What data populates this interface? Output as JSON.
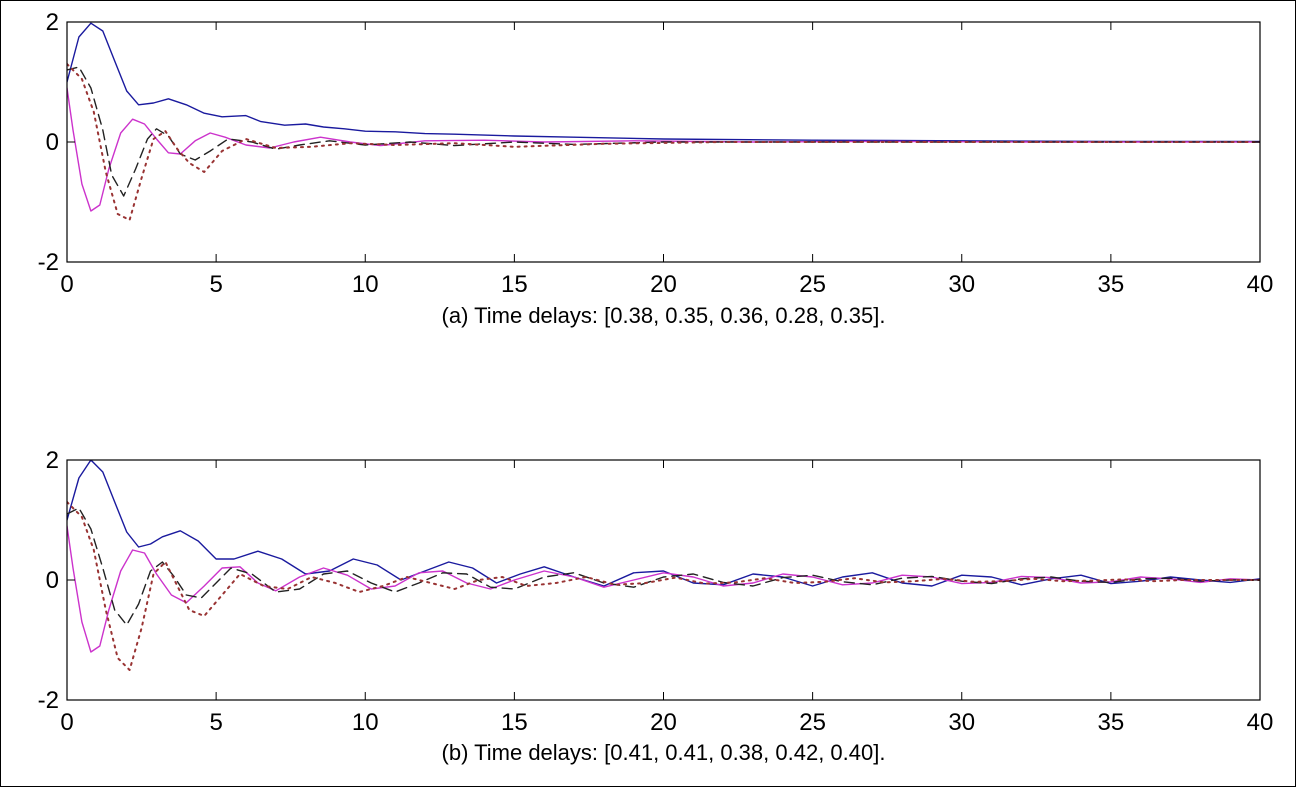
{
  "chart_data": [
    {
      "type": "line",
      "caption": "(a) Time  delays: [0.38, 0.35, 0.36, 0.28, 0.35].",
      "xlim": [
        0,
        40
      ],
      "ylim": [
        -2,
        2
      ],
      "xticks": [
        0,
        5,
        10,
        15,
        20,
        25,
        30,
        35,
        40
      ],
      "yticks": [
        -2,
        0,
        2
      ],
      "grid": false,
      "series": [
        {
          "color": "#1a1a9e",
          "style": "solid",
          "x": [
            0,
            0.4,
            0.8,
            1.2,
            1.6,
            2.0,
            2.4,
            2.9,
            3.4,
            4.0,
            4.6,
            5.2,
            6.0,
            6.5,
            7.3,
            8.0,
            8.6,
            9.3,
            10,
            11,
            12,
            13,
            15,
            17,
            20,
            25,
            30,
            35,
            40
          ],
          "y": [
            1.0,
            1.75,
            1.98,
            1.85,
            1.35,
            0.85,
            0.62,
            0.65,
            0.72,
            0.62,
            0.48,
            0.42,
            0.44,
            0.34,
            0.28,
            0.3,
            0.25,
            0.22,
            0.18,
            0.17,
            0.14,
            0.13,
            0.1,
            0.08,
            0.05,
            0.03,
            0.02,
            0.01,
            0.01
          ]
        },
        {
          "color": "#cc33cc",
          "style": "solid",
          "x": [
            0,
            0.2,
            0.5,
            0.8,
            1.1,
            1.4,
            1.8,
            2.2,
            2.6,
            3.0,
            3.4,
            3.8,
            4.3,
            4.8,
            5.3,
            6.0,
            6.8,
            7.6,
            8.5,
            9.5,
            10.5,
            12,
            14,
            16,
            19,
            23,
            27,
            32,
            40
          ],
          "y": [
            0.9,
            0.2,
            -0.7,
            -1.15,
            -1.05,
            -0.45,
            0.15,
            0.38,
            0.3,
            0.05,
            -0.18,
            -0.2,
            0.02,
            0.15,
            0.08,
            -0.05,
            -0.1,
            0.0,
            0.08,
            0.0,
            -0.06,
            0.02,
            0.03,
            0.0,
            0.02,
            0.0,
            0.01,
            0.0,
            0.0
          ]
        },
        {
          "color": "#222222",
          "style": "dash",
          "x": [
            0,
            0.4,
            0.8,
            1.2,
            1.5,
            1.9,
            2.3,
            2.7,
            3.0,
            3.4,
            3.8,
            4.3,
            4.8,
            5.4,
            6.2,
            7.0,
            7.8,
            8.8,
            10,
            11.5,
            13,
            15,
            17,
            20,
            25,
            30,
            40
          ],
          "y": [
            1.2,
            1.25,
            0.9,
            0.2,
            -0.55,
            -0.9,
            -0.45,
            0.05,
            0.22,
            0.1,
            -0.2,
            -0.3,
            -0.15,
            0.05,
            0.0,
            -0.12,
            -0.05,
            0.02,
            -0.05,
            0.0,
            -0.06,
            0.0,
            -0.04,
            0.0,
            0.0,
            0.0,
            0.0
          ]
        },
        {
          "color": "#993333",
          "style": "dot",
          "x": [
            0,
            0.5,
            0.9,
            1.3,
            1.7,
            2.1,
            2.5,
            2.9,
            3.3,
            3.7,
            4.1,
            4.6,
            5.2,
            6.0,
            7.0,
            8.2,
            9.5,
            11,
            13,
            15,
            18,
            22,
            26,
            32,
            40
          ],
          "y": [
            1.3,
            1.05,
            0.5,
            -0.5,
            -1.2,
            -1.3,
            -0.6,
            0.05,
            0.18,
            -0.12,
            -0.35,
            -0.5,
            -0.15,
            0.05,
            -0.1,
            -0.08,
            -0.02,
            -0.05,
            -0.02,
            -0.08,
            -0.03,
            0.0,
            0.0,
            0.0,
            0.0
          ]
        }
      ]
    },
    {
      "type": "line",
      "caption": "(b) Time delays: [0.41, 0.41, 0.38, 0.42, 0.40].",
      "xlim": [
        0,
        40
      ],
      "ylim": [
        -2,
        2
      ],
      "xticks": [
        0,
        5,
        10,
        15,
        20,
        25,
        30,
        35,
        40
      ],
      "yticks": [
        -2,
        0,
        2
      ],
      "grid": false,
      "series": [
        {
          "color": "#1a1a9e",
          "style": "solid",
          "x": [
            0,
            0.4,
            0.8,
            1.2,
            1.6,
            2.0,
            2.4,
            2.8,
            3.2,
            3.8,
            4.4,
            5.0,
            5.6,
            6.4,
            7.2,
            8.0,
            8.8,
            9.6,
            10.4,
            11.2,
            12.0,
            12.8,
            13.6,
            14.4,
            15.2,
            16,
            17,
            18,
            19,
            20,
            21,
            22,
            23,
            24,
            25,
            26,
            27,
            28,
            29,
            30,
            31,
            32,
            33,
            34,
            35,
            36,
            37,
            38,
            39,
            40
          ],
          "y": [
            1.0,
            1.7,
            2.0,
            1.8,
            1.3,
            0.8,
            0.55,
            0.6,
            0.72,
            0.82,
            0.65,
            0.35,
            0.35,
            0.48,
            0.35,
            0.1,
            0.15,
            0.35,
            0.25,
            0.0,
            0.15,
            0.3,
            0.2,
            -0.05,
            0.1,
            0.22,
            0.05,
            -0.1,
            0.12,
            0.15,
            -0.05,
            -0.08,
            0.1,
            0.05,
            -0.1,
            0.05,
            0.12,
            -0.05,
            -0.1,
            0.08,
            0.05,
            -0.08,
            0.02,
            0.08,
            -0.06,
            -0.02,
            0.05,
            0.0,
            -0.04,
            0.02
          ]
        },
        {
          "color": "#cc33cc",
          "style": "solid",
          "x": [
            0,
            0.2,
            0.5,
            0.8,
            1.1,
            1.4,
            1.8,
            2.2,
            2.6,
            3.0,
            3.5,
            4.0,
            4.6,
            5.2,
            5.8,
            6.4,
            7.0,
            7.8,
            8.6,
            9.4,
            10.2,
            11.0,
            11.8,
            12.6,
            13.4,
            14.2,
            15,
            16,
            17,
            18,
            19,
            20,
            21,
            22,
            23,
            24,
            25,
            26,
            27,
            28,
            29,
            30,
            31,
            32,
            33,
            34,
            35,
            36,
            37,
            38,
            39,
            40
          ],
          "y": [
            0.9,
            0.2,
            -0.7,
            -1.2,
            -1.1,
            -0.5,
            0.15,
            0.5,
            0.45,
            0.1,
            -0.25,
            -0.38,
            -0.1,
            0.2,
            0.22,
            -0.05,
            -0.18,
            0.05,
            0.2,
            0.08,
            -0.15,
            -0.1,
            0.12,
            0.15,
            -0.05,
            -0.15,
            0.0,
            0.15,
            0.05,
            -0.12,
            0.0,
            0.12,
            0.05,
            -0.1,
            -0.05,
            0.1,
            0.05,
            -0.08,
            -0.05,
            0.08,
            0.05,
            -0.06,
            -0.04,
            0.06,
            0.04,
            -0.05,
            -0.03,
            0.05,
            0.02,
            -0.04,
            0.02,
            0.0
          ]
        },
        {
          "color": "#222222",
          "style": "dash",
          "x": [
            0,
            0.4,
            0.8,
            1.2,
            1.6,
            2.0,
            2.4,
            2.8,
            3.2,
            3.6,
            4.0,
            4.5,
            5.0,
            5.5,
            6.2,
            7.0,
            7.8,
            8.6,
            9.4,
            10.2,
            11.0,
            11.8,
            12.6,
            13.4,
            14.2,
            15,
            16,
            17,
            18,
            19,
            20,
            21,
            22,
            23,
            24,
            25,
            26,
            27,
            28,
            29,
            30,
            31,
            32,
            33,
            34,
            35,
            36,
            37,
            38,
            39,
            40
          ],
          "y": [
            1.1,
            1.2,
            0.85,
            0.2,
            -0.5,
            -0.75,
            -0.4,
            0.15,
            0.3,
            0.05,
            -0.25,
            -0.3,
            -0.05,
            0.2,
            0.1,
            -0.2,
            -0.15,
            0.1,
            0.15,
            -0.05,
            -0.2,
            -0.05,
            0.12,
            0.1,
            -0.12,
            -0.15,
            0.05,
            0.12,
            -0.05,
            -0.12,
            0.05,
            0.1,
            -0.04,
            -0.1,
            0.04,
            0.08,
            -0.03,
            -0.08,
            0.03,
            0.06,
            -0.02,
            -0.06,
            0.02,
            0.05,
            -0.02,
            -0.04,
            0.02,
            0.03,
            -0.02,
            0.0,
            0.0
          ]
        },
        {
          "color": "#993333",
          "style": "dot",
          "x": [
            0,
            0.5,
            0.9,
            1.3,
            1.7,
            2.1,
            2.5,
            2.9,
            3.3,
            3.7,
            4.1,
            4.6,
            5.2,
            5.8,
            6.6,
            7.4,
            8.2,
            9.0,
            9.8,
            10.6,
            11.4,
            12.2,
            13.0,
            13.8,
            14.6,
            15.4,
            16.4,
            17.4,
            18.4,
            19.4,
            20.4,
            21.4,
            22.4,
            23.4,
            24.4,
            25.4,
            26.4,
            27.4,
            28.4,
            29.4,
            30.4,
            31.4,
            32.4,
            33.4,
            34.4,
            35.4,
            36.4,
            37.4,
            38.4,
            40
          ],
          "y": [
            1.3,
            1.05,
            0.5,
            -0.5,
            -1.3,
            -1.5,
            -0.8,
            0.1,
            0.3,
            -0.1,
            -0.5,
            -0.6,
            -0.25,
            0.1,
            -0.1,
            -0.15,
            0.05,
            -0.05,
            -0.2,
            -0.1,
            0.05,
            -0.05,
            -0.15,
            0.0,
            0.05,
            -0.1,
            -0.05,
            0.05,
            -0.08,
            -0.05,
            0.04,
            -0.06,
            -0.04,
            0.03,
            -0.05,
            -0.03,
            0.03,
            -0.04,
            -0.02,
            0.02,
            -0.03,
            -0.02,
            0.02,
            -0.02,
            -0.01,
            0.01,
            -0.02,
            0.0,
            0.0,
            0.0
          ]
        }
      ]
    }
  ]
}
